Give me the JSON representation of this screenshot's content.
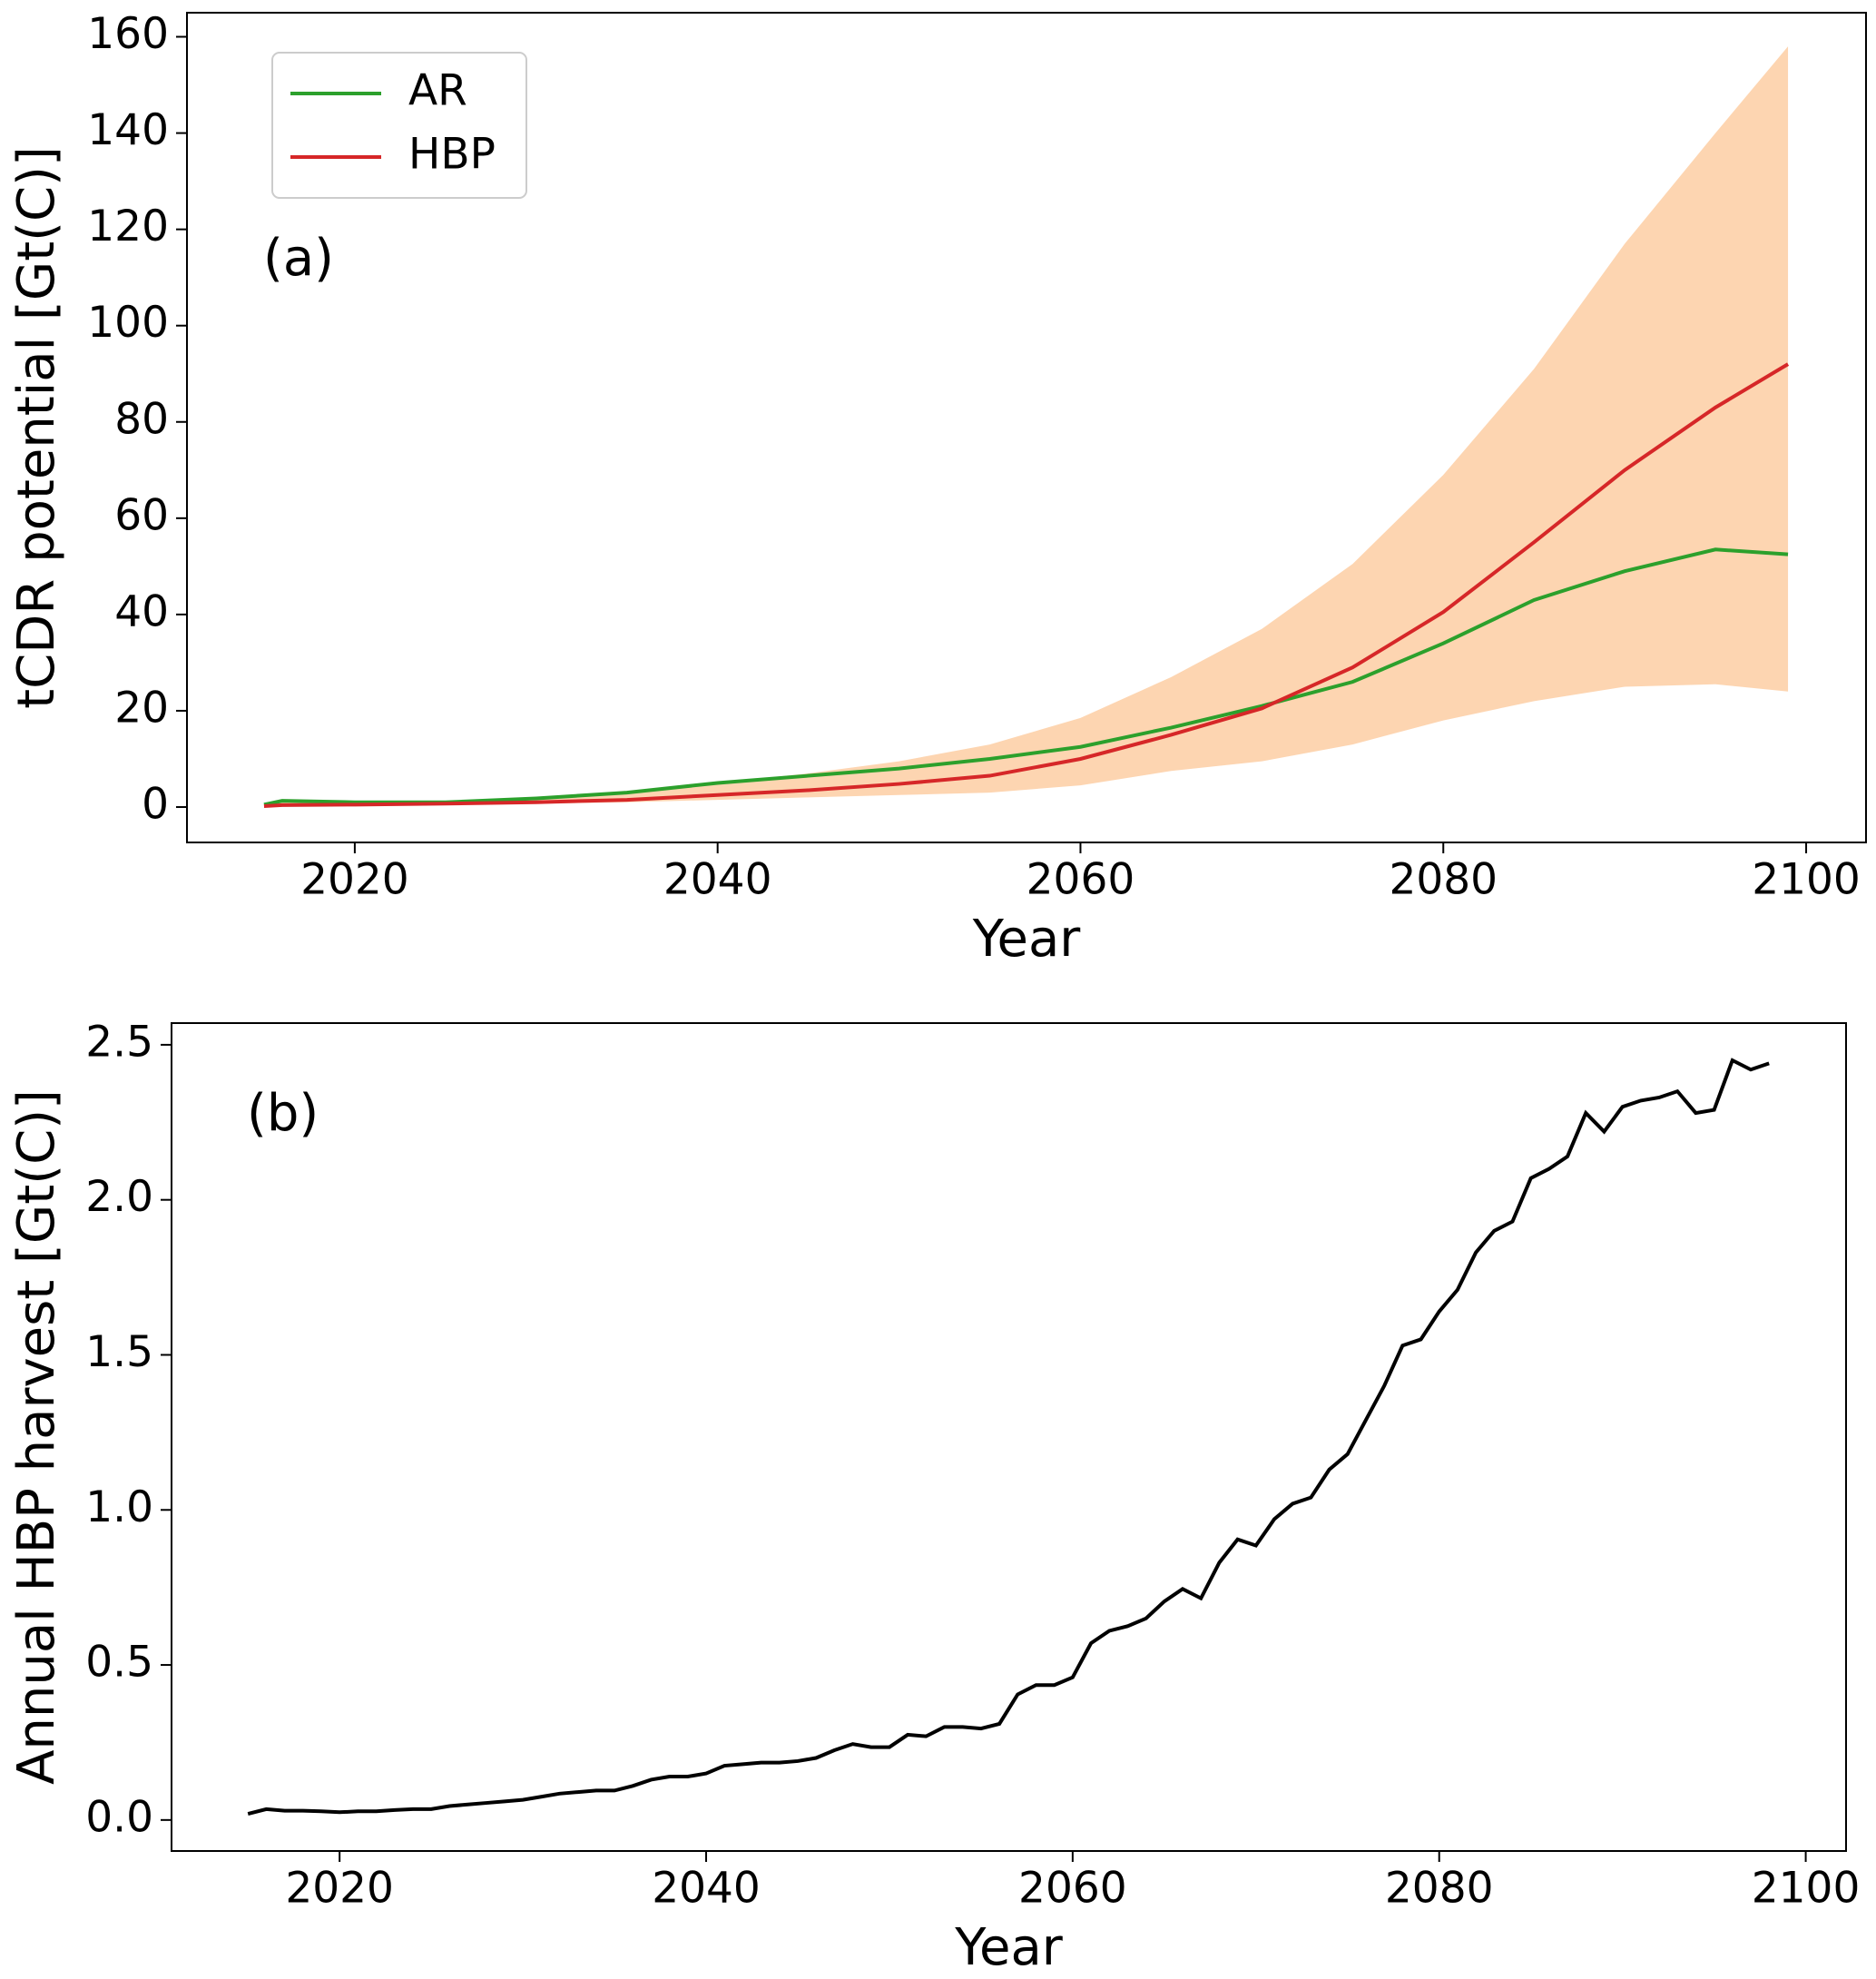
{
  "chart_data": [
    {
      "type": "line",
      "annotation": "(a)",
      "xlabel": "Year",
      "ylabel": "tCDR potential [Gt(C)]",
      "x": [
        2015,
        2016,
        2020,
        2025,
        2030,
        2035,
        2040,
        2045,
        2050,
        2055,
        2060,
        2065,
        2070,
        2075,
        2080,
        2085,
        2090,
        2095,
        2099
      ],
      "series": [
        {
          "name": "AR",
          "color": "#2ca02c",
          "values": [
            0.5,
            1.3,
            1,
            1,
            1.8,
            3,
            5,
            6.5,
            8,
            10,
            12.5,
            16.5,
            21,
            26,
            34,
            43,
            49,
            53.5,
            52.5
          ]
        },
        {
          "name": "HBP",
          "color": "#d62728",
          "values": [
            0.2,
            0.4,
            0.5,
            0.7,
            1,
            1.5,
            2.5,
            3.5,
            4.8,
            6.5,
            10,
            15,
            20.5,
            29,
            40.5,
            55,
            70,
            83,
            92
          ]
        }
      ],
      "band": {
        "color": "#fdd5b1",
        "lower": [
          0.2,
          0.3,
          0.3,
          0.5,
          0.7,
          1,
          1.5,
          2,
          2.5,
          3,
          4.5,
          7.5,
          9.5,
          13,
          18,
          22,
          25,
          25.5,
          24
        ],
        "upper": [
          0.5,
          1.3,
          1,
          1.2,
          2,
          3.2,
          5,
          7,
          9.5,
          13,
          18.5,
          27,
          37,
          50.5,
          69,
          91,
          117,
          140,
          158
        ]
      },
      "xlim": [
        2010.75,
        2103.3
      ],
      "xticks": [
        2020,
        2040,
        2060,
        2080,
        2100
      ],
      "ylim": [
        -7.35,
        165
      ],
      "yticks": [
        0,
        20,
        40,
        60,
        80,
        100,
        120,
        140,
        160
      ],
      "legend": "upper left"
    },
    {
      "type": "line",
      "annotation": "(b)",
      "xlabel": "Year",
      "ylabel": "Annual HBP harvest [Gt(C)]",
      "x": [
        2015,
        2016,
        2017,
        2018,
        2019,
        2020,
        2021,
        2022,
        2023,
        2024,
        2025,
        2026,
        2027,
        2028,
        2029,
        2030,
        2031,
        2032,
        2033,
        2034,
        2035,
        2036,
        2037,
        2038,
        2039,
        2040,
        2041,
        2042,
        2043,
        2044,
        2045,
        2046,
        2047,
        2048,
        2049,
        2050,
        2051,
        2052,
        2053,
        2054,
        2055,
        2056,
        2057,
        2058,
        2059,
        2060,
        2061,
        2062,
        2063,
        2064,
        2065,
        2066,
        2067,
        2068,
        2069,
        2070,
        2071,
        2072,
        2073,
        2074,
        2075,
        2076,
        2077,
        2078,
        2079,
        2080,
        2081,
        2082,
        2083,
        2084,
        2085,
        2086,
        2087,
        2088,
        2089,
        2090,
        2091,
        2092,
        2093,
        2094,
        2095,
        2096,
        2097,
        2098
      ],
      "series": [
        {
          "color": "#000000",
          "values": [
            0.02,
            0.035,
            0.03,
            0.03,
            0.028,
            0.025,
            0.028,
            0.028,
            0.032,
            0.035,
            0.035,
            0.045,
            0.05,
            0.055,
            0.06,
            0.065,
            0.075,
            0.085,
            0.09,
            0.095,
            0.095,
            0.11,
            0.13,
            0.14,
            0.14,
            0.15,
            0.175,
            0.18,
            0.185,
            0.185,
            0.19,
            0.2,
            0.225,
            0.245,
            0.235,
            0.235,
            0.275,
            0.27,
            0.3,
            0.3,
            0.295,
            0.31,
            0.405,
            0.435,
            0.435,
            0.46,
            0.57,
            0.61,
            0.625,
            0.65,
            0.705,
            0.745,
            0.715,
            0.83,
            0.905,
            0.885,
            0.97,
            1.02,
            1.04,
            1.13,
            1.18,
            1.29,
            1.4,
            1.53,
            1.55,
            1.64,
            1.71,
            1.83,
            1.9,
            1.93,
            2.07,
            2.1,
            2.14,
            2.28,
            2.22,
            2.3,
            2.32,
            2.33,
            2.35,
            2.28,
            2.29,
            2.45,
            2.42,
            2.44
          ]
        }
      ],
      "xlim": [
        2010.83,
        2102.2
      ],
      "xticks": [
        2020,
        2040,
        2060,
        2080,
        2100
      ],
      "ylim": [
        -0.1,
        2.57
      ],
      "yticks": [
        {
          "value": 0,
          "label": "0.0"
        },
        0.5,
        {
          "value": 1,
          "label": "1.0"
        },
        1.5,
        {
          "value": 2,
          "label": "2.0"
        },
        2.5
      ]
    }
  ]
}
